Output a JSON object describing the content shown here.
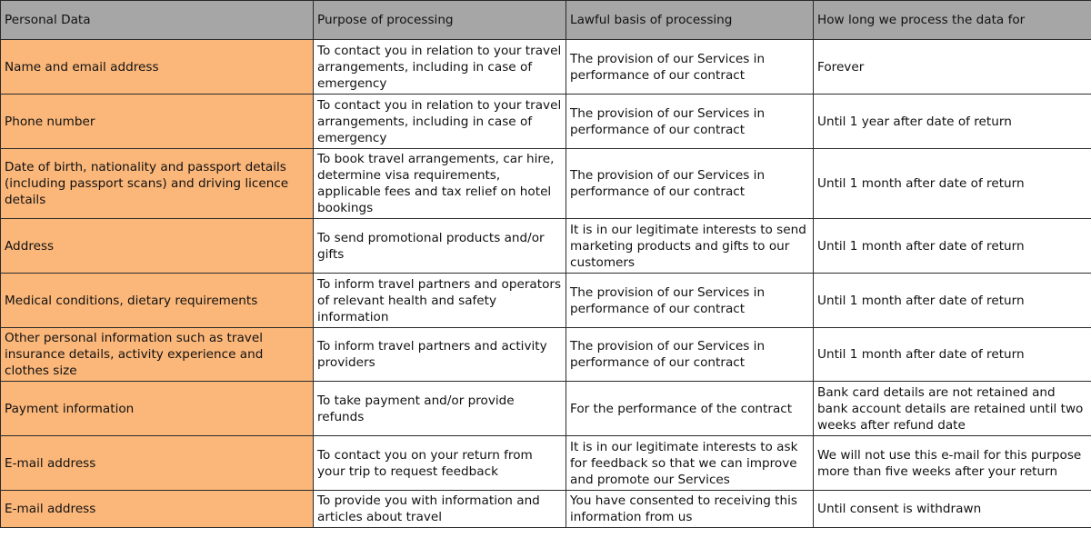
{
  "headers": [
    "Personal Data",
    "Purpose of processing",
    "Lawful basis of processing",
    "How long we process the data for"
  ],
  "colors": {
    "header_bg": "#a6a6a6",
    "personal_data_bg": "#fbb77a"
  },
  "rows": [
    [
      "Name and email address",
      "To contact you in relation to your travel arrangements, including in case of emergency",
      "The provision of our Services in performance of our contract",
      "Forever"
    ],
    [
      "Phone number",
      "To contact you in relation to your travel arrangements, including in case of emergency",
      "The provision of our Services in performance of our contract",
      "Until 1 year after date of return"
    ],
    [
      "Date of birth, nationality and passport details (including passport scans) and driving licence details",
      "To book travel arrangements, car hire, determine visa requirements, applicable fees and tax relief on hotel bookings",
      "The provision of our Services in performance of our contract",
      "Until 1 month after date of return"
    ],
    [
      "Address",
      "To send promotional products and/or gifts",
      "It is in our legitimate interests to send marketing products and gifts to our customers",
      "Until 1 month after date of return"
    ],
    [
      "Medical conditions, dietary requirements",
      "To inform travel partners and operators of relevant health and safety information",
      "The provision of our Services in performance of our contract",
      "Until 1 month after date of return"
    ],
    [
      "Other personal information such as travel insurance details, activity experience and clothes size",
      "To inform travel partners and activity providers",
      "The provision of our Services in performance of our contract",
      "Until 1 month after date of return"
    ],
    [
      "Payment information",
      "To take payment and/or provide refunds",
      "For the performance of the contract",
      "Bank card details are not retained and bank account details are retained until two weeks after refund date"
    ],
    [
      "E-mail address",
      "To contact you on your return from your trip to request feedback",
      "It is in our legitimate interests to ask for feedback so that we can improve and promote our Services",
      "We will not use this e-mail for this purpose more than five weeks after your return"
    ],
    [
      "E-mail address",
      "To provide you with information and articles about travel",
      "You have consented to receiving this information from us",
      "Until consent is withdrawn"
    ]
  ]
}
